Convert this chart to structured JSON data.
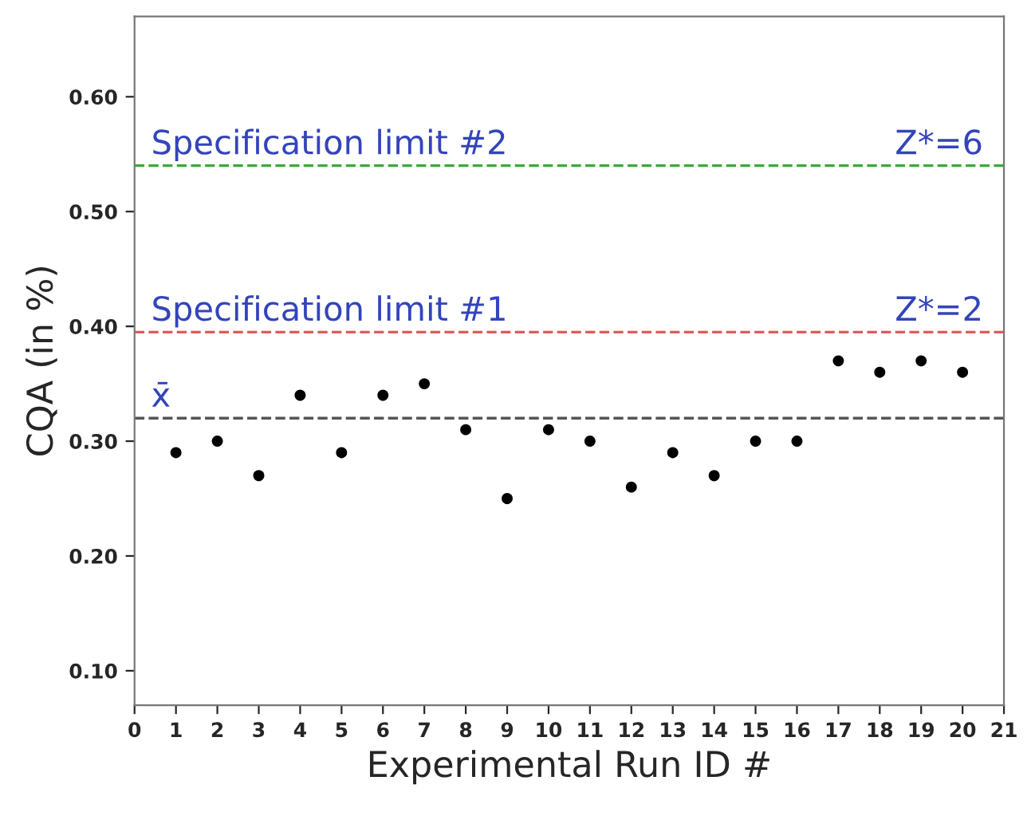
{
  "chart_data": {
    "type": "scatter",
    "xlabel": "Experimental Run ID #",
    "ylabel": "CQA (in %)",
    "x": [
      1,
      2,
      3,
      4,
      5,
      6,
      7,
      8,
      9,
      10,
      11,
      12,
      13,
      14,
      15,
      16,
      17,
      18,
      19,
      20
    ],
    "series": [
      {
        "color": "#000000",
        "values": [
          0.29,
          0.3,
          0.27,
          0.34,
          0.29,
          0.34,
          0.35,
          0.31,
          0.25,
          0.31,
          0.3,
          0.26,
          0.29,
          0.27,
          0.3,
          0.3,
          0.37,
          0.36,
          0.37,
          0.36
        ]
      }
    ],
    "marker": "circle",
    "xlim": [
      0,
      21
    ],
    "xticks": [
      0,
      1,
      2,
      3,
      4,
      5,
      6,
      7,
      8,
      9,
      10,
      11,
      12,
      13,
      14,
      15,
      16,
      17,
      18,
      19,
      20,
      21
    ],
    "ylim": [
      0.07,
      0.67
    ],
    "yticks": [
      {
        "value": 0.1,
        "label": "0.10"
      },
      {
        "value": 0.2,
        "label": "0.20"
      },
      {
        "value": 0.3,
        "label": "0.30"
      },
      {
        "value": 0.4,
        "label": "0.40"
      },
      {
        "value": 0.5,
        "label": "0.50"
      },
      {
        "value": 0.6,
        "label": "0.60"
      }
    ],
    "ref_lines": [
      {
        "axis": "y",
        "value": 0.54,
        "label": "Specification limit #2",
        "color": "#3aaa3a",
        "line_style": "dashed"
      },
      {
        "axis": "y",
        "value": 0.395,
        "label": "Specification limit #1",
        "color": "#e05a5a",
        "line_style": "dashed"
      },
      {
        "axis": "y",
        "value": 0.32,
        "label": "x̄",
        "color": "#555555",
        "line_style": "dashed"
      }
    ],
    "annotations": [
      {
        "text": "Z*=6",
        "x": 20.5,
        "y": 0.54
      },
      {
        "text": "Z*=2",
        "x": 20.5,
        "y": 0.395
      }
    ],
    "grid": false
  }
}
